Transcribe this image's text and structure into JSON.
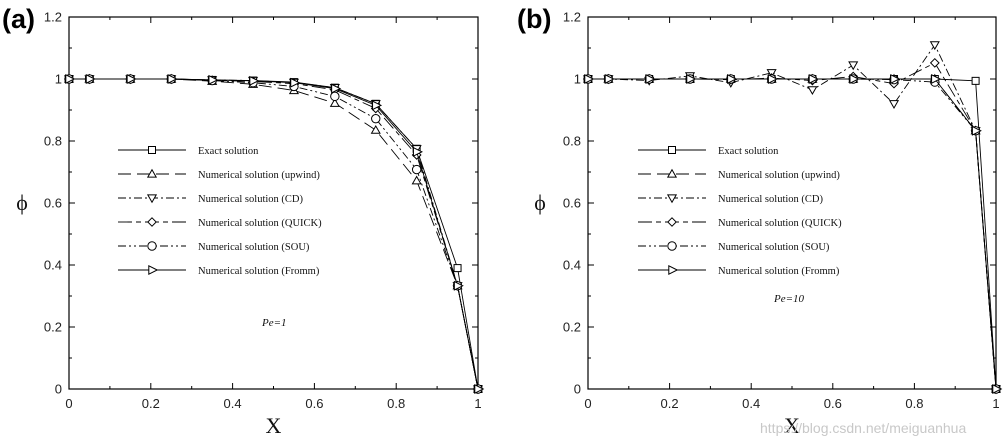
{
  "watermark": "https://blog.csdn.net/meiguanhua",
  "chart_data": [
    {
      "type": "line",
      "panel_label": "(a)",
      "annotation": "Pe=1",
      "xlabel": "X",
      "ylabel": "ϕ",
      "xlim": [
        0,
        1
      ],
      "ylim": [
        0,
        1.2
      ],
      "xticks": [
        "0",
        "0.2",
        "0.4",
        "0.6",
        "0.8",
        "1"
      ],
      "yticks": [
        "0",
        "0.2",
        "0.4",
        "0.6",
        "0.8",
        "1",
        "1.2"
      ],
      "legend_position": "middle-left",
      "x": [
        0,
        0.05,
        0.15,
        0.25,
        0.35,
        0.45,
        0.55,
        0.65,
        0.75,
        0.85,
        0.95,
        1
      ],
      "series": [
        {
          "name": "Exact solution",
          "dash": "solid",
          "marker": "square",
          "values": [
            1,
            1,
            1,
            1,
            0.997,
            0.995,
            0.99,
            0.972,
            0.92,
            0.775,
            0.39,
            0
          ]
        },
        {
          "name": "Numerical solution (upwind)",
          "dash": "long-dash",
          "marker": "triangle-up",
          "values": [
            1,
            1,
            1,
            1,
            0.993,
            0.983,
            0.963,
            0.922,
            0.835,
            0.672,
            0.333,
            0
          ]
        },
        {
          "name": "Numerical solution (CD)",
          "dash": "dash-dot",
          "marker": "triangle-down",
          "values": [
            1,
            1,
            1,
            1,
            0.997,
            0.995,
            0.989,
            0.972,
            0.92,
            0.775,
            0.333,
            0
          ]
        },
        {
          "name": "Numerical solution (QUICK)",
          "dash": "long-dash-short",
          "marker": "diamond",
          "values": [
            1,
            1,
            1,
            1,
            0.996,
            0.992,
            0.985,
            0.965,
            0.905,
            0.755,
            0.333,
            0
          ]
        },
        {
          "name": "Numerical solution (SOU)",
          "dash": "dash-dot-dot",
          "marker": "circle",
          "values": [
            1,
            1,
            1,
            1,
            0.995,
            0.988,
            0.976,
            0.944,
            0.872,
            0.708,
            0.333,
            0
          ]
        },
        {
          "name": "Numerical solution (Fromm)",
          "dash": "solid",
          "marker": "triangle-right",
          "values": [
            1,
            1,
            1,
            1,
            0.997,
            0.994,
            0.988,
            0.969,
            0.915,
            0.765,
            0.333,
            0
          ]
        }
      ]
    },
    {
      "type": "line",
      "panel_label": "(b)",
      "annotation": "Pe=10",
      "xlabel": "X",
      "ylabel": "ϕ",
      "xlim": [
        0,
        1
      ],
      "ylim": [
        0,
        1.2
      ],
      "xticks": [
        "0",
        "0.2",
        "0.4",
        "0.6",
        "0.8",
        "1"
      ],
      "yticks": [
        "0",
        "0.2",
        "0.4",
        "0.6",
        "0.8",
        "1",
        "1.2"
      ],
      "legend_position": "middle-left",
      "x": [
        0,
        0.05,
        0.15,
        0.25,
        0.35,
        0.45,
        0.55,
        0.65,
        0.75,
        0.85,
        0.95,
        1
      ],
      "series": [
        {
          "name": "Exact solution",
          "dash": "solid",
          "marker": "square",
          "values": [
            1,
            1,
            1,
            1,
            1,
            1,
            1,
            1,
            1,
            1,
            0.994,
            0
          ]
        },
        {
          "name": "Numerical solution (upwind)",
          "dash": "long-dash",
          "marker": "triangle-up",
          "values": [
            1,
            1,
            1,
            1,
            1,
            1,
            1,
            1,
            1,
            1,
            0.833,
            0
          ]
        },
        {
          "name": "Numerical solution (CD)",
          "dash": "dash-dot",
          "marker": "triangle-down",
          "values": [
            1,
            1,
            0.995,
            1.01,
            0.988,
            1.02,
            0.965,
            1.045,
            0.92,
            1.11,
            0.833,
            0
          ]
        },
        {
          "name": "Numerical solution (QUICK)",
          "dash": "long-dash-short",
          "marker": "diamond",
          "values": [
            1,
            1,
            1,
            1,
            0.998,
            1.003,
            0.995,
            1.008,
            0.985,
            1.052,
            0.833,
            0
          ]
        },
        {
          "name": "Numerical solution (SOU)",
          "dash": "dash-dot-dot",
          "marker": "circle",
          "values": [
            1,
            1,
            1,
            1,
            1,
            1,
            1,
            1,
            0.998,
            0.99,
            0.833,
            0
          ]
        },
        {
          "name": "Numerical solution (Fromm)",
          "dash": "solid",
          "marker": "triangle-right",
          "values": [
            1,
            1,
            1,
            1,
            1,
            1,
            1,
            1,
            1,
            1,
            0.833,
            0
          ]
        }
      ]
    }
  ]
}
